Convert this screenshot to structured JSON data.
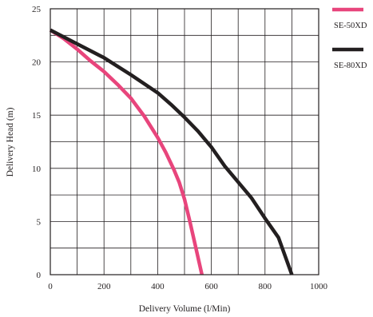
{
  "chart_data": {
    "type": "line",
    "xlabel": "Delivery Volume (l/Min)",
    "ylabel": "Delivery Head (m)",
    "xlim": [
      0,
      1000
    ],
    "ylim": [
      0,
      25
    ],
    "x_ticks": [
      0,
      200,
      400,
      600,
      800,
      1000
    ],
    "y_ticks": [
      0,
      5,
      10,
      15,
      20,
      25
    ],
    "x_grid_step": 100,
    "y_grid_step": 2.5,
    "grid": true,
    "legend_position": "top-right, outside plot",
    "series": [
      {
        "name": "SE-50XD",
        "color": "#e8457c",
        "points": [
          [
            0,
            23
          ],
          [
            50,
            22.2
          ],
          [
            100,
            21.2
          ],
          [
            150,
            20.1
          ],
          [
            200,
            19.1
          ],
          [
            250,
            17.9
          ],
          [
            300,
            16.6
          ],
          [
            350,
            14.9
          ],
          [
            400,
            12.9
          ],
          [
            430,
            11.5
          ],
          [
            460,
            9.9
          ],
          [
            480,
            8.7
          ],
          [
            500,
            7.1
          ],
          [
            520,
            5.0
          ],
          [
            540,
            2.8
          ],
          [
            565,
            0
          ]
        ]
      },
      {
        "name": "SE-80XD",
        "color": "#231f20",
        "points": [
          [
            0,
            23
          ],
          [
            100,
            21.7
          ],
          [
            200,
            20.4
          ],
          [
            300,
            18.8
          ],
          [
            400,
            17.1
          ],
          [
            450,
            16.0
          ],
          [
            500,
            14.8
          ],
          [
            550,
            13.5
          ],
          [
            600,
            12.0
          ],
          [
            650,
            10.2
          ],
          [
            700,
            8.7
          ],
          [
            750,
            7.2
          ],
          [
            800,
            5.3
          ],
          [
            850,
            3.5
          ],
          [
            900,
            0
          ]
        ]
      }
    ]
  }
}
